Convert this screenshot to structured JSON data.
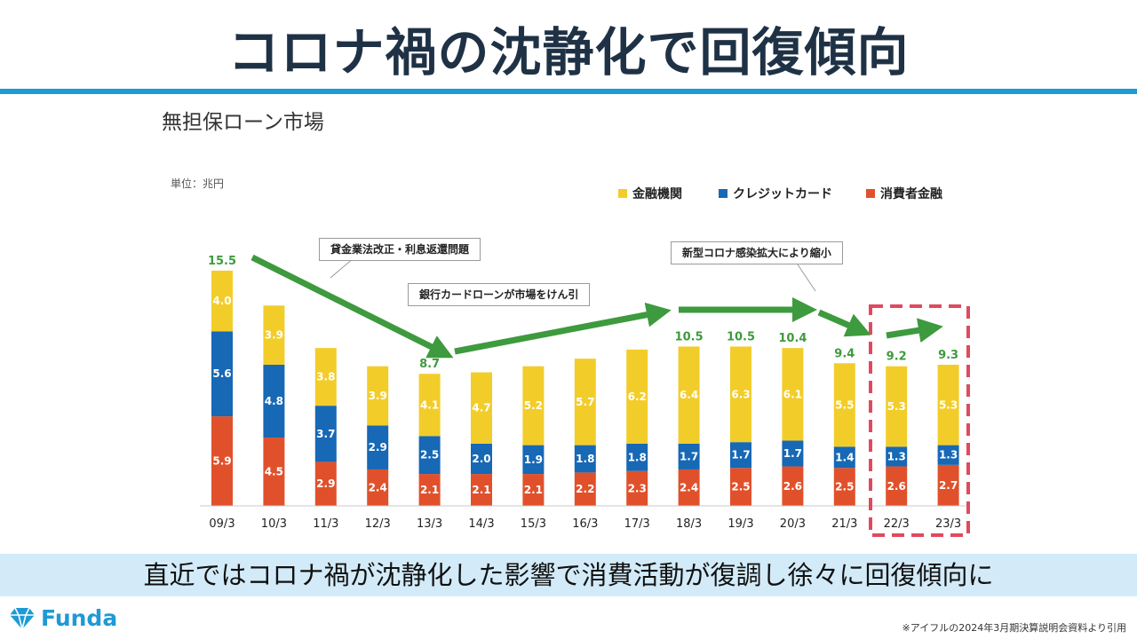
{
  "header": {
    "title": "コロナ禍の沈静化で回復傾向"
  },
  "chart_data": {
    "type": "bar",
    "stacked": true,
    "title": "無担保ローン市場",
    "unit_label": "単位：兆円",
    "categories": [
      "09/3",
      "10/3",
      "11/3",
      "12/3",
      "13/3",
      "14/3",
      "15/3",
      "16/3",
      "17/3",
      "18/3",
      "19/3",
      "20/3",
      "21/3",
      "22/3",
      "23/3"
    ],
    "series": [
      {
        "name": "消費者金融",
        "color": "#e0512b",
        "values": [
          5.9,
          4.5,
          2.9,
          2.4,
          2.1,
          2.1,
          2.1,
          2.2,
          2.3,
          2.4,
          2.5,
          2.6,
          2.5,
          2.6,
          2.7
        ]
      },
      {
        "name": "クレジットカード",
        "color": "#1768b5",
        "values": [
          5.6,
          4.8,
          3.7,
          2.9,
          2.5,
          2.0,
          1.9,
          1.8,
          1.8,
          1.7,
          1.7,
          1.7,
          1.4,
          1.3,
          1.3
        ]
      },
      {
        "name": "金融機関",
        "color": "#f2cd2a",
        "values": [
          4.0,
          3.9,
          3.8,
          3.9,
          4.1,
          4.7,
          5.2,
          5.7,
          6.2,
          6.4,
          6.3,
          6.1,
          5.5,
          5.3,
          5.3
        ]
      }
    ],
    "legend_order": [
      "金融機関",
      "クレジットカード",
      "消費者金融"
    ],
    "total_labels": [
      {
        "category": "09/3",
        "value": "15.5"
      },
      {
        "category": "13/3",
        "value": "8.7"
      },
      {
        "category": "18/3",
        "value": "10.5"
      },
      {
        "category": "19/3",
        "value": "10.5"
      },
      {
        "category": "20/3",
        "value": "10.4"
      },
      {
        "category": "21/3",
        "value": "9.4"
      },
      {
        "category": "22/3",
        "value": "9.2"
      },
      {
        "category": "23/3",
        "value": "9.3"
      }
    ],
    "annotations": [
      "貸金業法改正・利息返還問題",
      "銀行カードローンが市場をけん引",
      "新型コロナ感染拡大により縮小"
    ],
    "highlight_categories": [
      "22/3",
      "23/3"
    ],
    "ylim": [
      0,
      16
    ]
  },
  "footer": {
    "message": "直近ではコロナ禍が沈静化した影響で消費活動が復調し徐々に回復傾向に",
    "brand": "Funda",
    "source": "※アイフルの2024年3月期決算説明会資料より引用"
  },
  "colors": {
    "accent": "#1e9ad6",
    "trend": "#3e9a3e",
    "highlight": "#e04a5e"
  }
}
